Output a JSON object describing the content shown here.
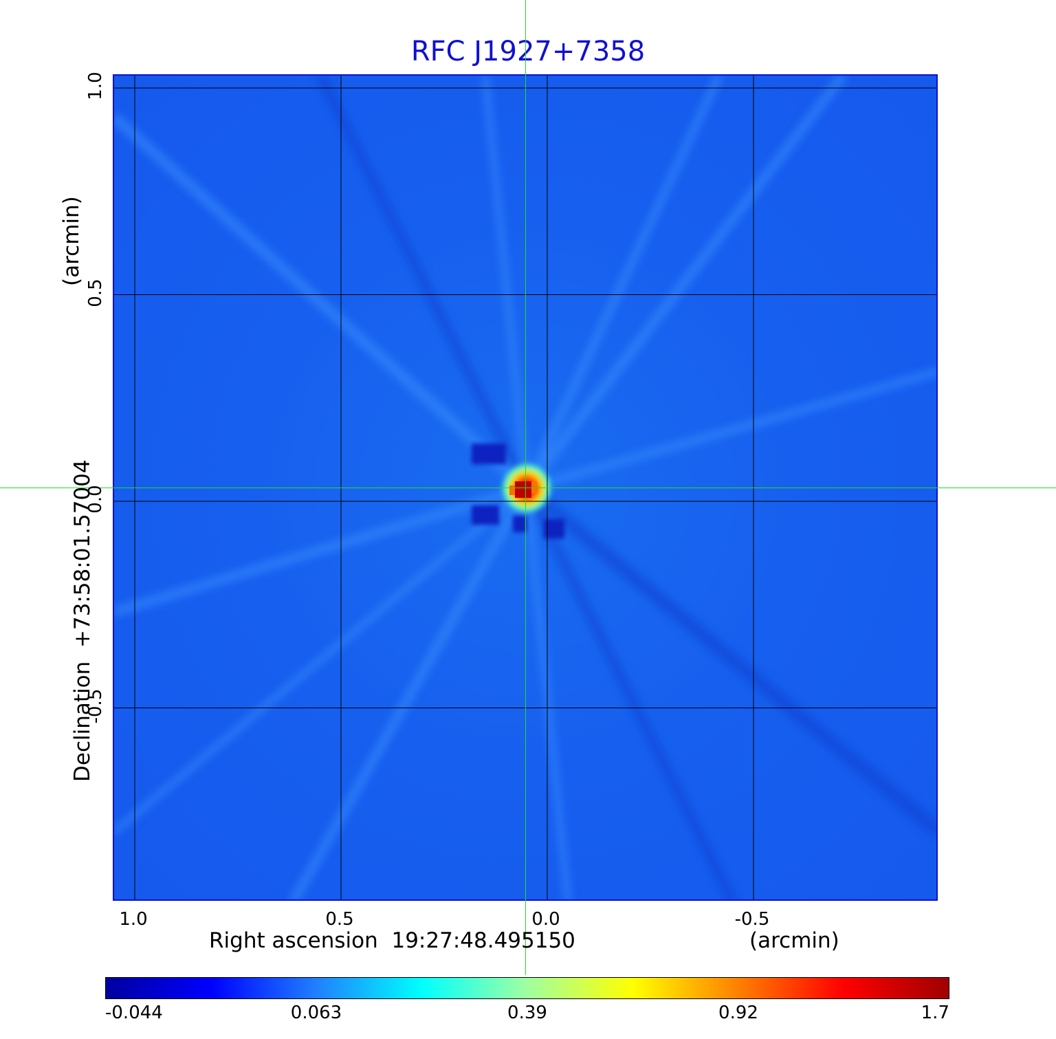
{
  "chart_data": {
    "type": "heatmap",
    "title": "RFC J1927+7358",
    "xlabel": "Right ascension  19:27:48.495150",
    "xunit": "(arcmin)",
    "ylabel": "Declination  +73:58:01.57004",
    "yunit": "(arcmin)",
    "x_ticks": [
      1.0,
      0.5,
      0.0,
      -0.5
    ],
    "x_tick_labels": [
      "1.0",
      "0.5",
      "0.0",
      "-0.5"
    ],
    "xlim": [
      1.05,
      -0.95
    ],
    "y_ticks": [
      1.0,
      0.5,
      0.0,
      -0.5
    ],
    "y_tick_labels": [
      "1.0",
      "0.5",
      "0.0",
      "-0.5"
    ],
    "ylim": [
      -0.97,
      1.03
    ],
    "grid": true,
    "crosshair": {
      "x": 0.05,
      "y": 0.03,
      "color": "#22dd22"
    },
    "peak": {
      "x": 0.05,
      "y": 0.02,
      "value": 1.7
    },
    "colorbar": {
      "tick_labels": [
        "-0.044",
        "0.063",
        "0.39",
        "0.92",
        "1.7"
      ],
      "colors": [
        "#0000a0",
        "#0000ff",
        "#2080ff",
        "#00ffff",
        "#a0ffa0",
        "#ffff00",
        "#ff8000",
        "#ff0000",
        "#a00000"
      ]
    },
    "colors": {
      "title": "#1010d0",
      "background": "#175fef",
      "frame": "#1010d0"
    }
  }
}
